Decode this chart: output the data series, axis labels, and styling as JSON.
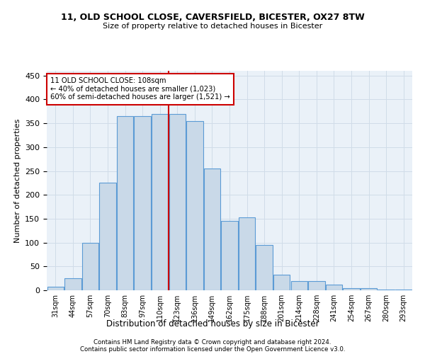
{
  "title1": "11, OLD SCHOOL CLOSE, CAVERSFIELD, BICESTER, OX27 8TW",
  "title2": "Size of property relative to detached houses in Bicester",
  "xlabel": "Distribution of detached houses by size in Bicester",
  "ylabel": "Number of detached properties",
  "footer1": "Contains HM Land Registry data © Crown copyright and database right 2024.",
  "footer2": "Contains public sector information licensed under the Open Government Licence v3.0.",
  "annotation_line1": "11 OLD SCHOOL CLOSE: 108sqm",
  "annotation_line2": "← 40% of detached houses are smaller (1,023)",
  "annotation_line3": "60% of semi-detached houses are larger (1,521) →",
  "bar_labels": [
    "31sqm",
    "44sqm",
    "57sqm",
    "70sqm",
    "83sqm",
    "97sqm",
    "110sqm",
    "123sqm",
    "136sqm",
    "149sqm",
    "162sqm",
    "175sqm",
    "188sqm",
    "201sqm",
    "214sqm",
    "228sqm",
    "241sqm",
    "254sqm",
    "267sqm",
    "280sqm",
    "293sqm"
  ],
  "bar_values": [
    8,
    25,
    100,
    225,
    365,
    365,
    370,
    370,
    355,
    255,
    145,
    153,
    95,
    32,
    20,
    20,
    12,
    5,
    4,
    2,
    2
  ],
  "bar_color": "#c9d9e8",
  "bar_edge_color": "#5b9bd5",
  "grid_color": "#d0dce8",
  "background_color": "#eaf1f8",
  "vline_x": 6.5,
  "vline_color": "#cc0000",
  "annotation_box_color": "#cc0000",
  "ylim": [
    0,
    460
  ],
  "yticks": [
    0,
    50,
    100,
    150,
    200,
    250,
    300,
    350,
    400,
    450
  ]
}
